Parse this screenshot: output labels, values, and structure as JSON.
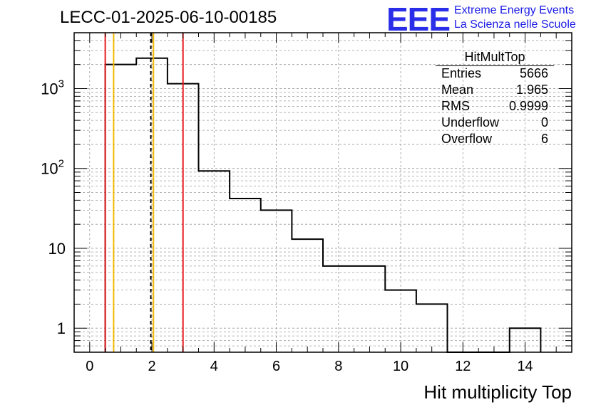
{
  "title": "LECC-01-2025-06-10-00185",
  "logo": {
    "mark": "EEE",
    "line1": "Extreme Energy Events",
    "line2": "La Scienza nelle Scuole",
    "color": "#1a1ae6"
  },
  "stats": {
    "name": "HitMultTop",
    "rows": [
      {
        "label": "Entries",
        "value": "5666"
      },
      {
        "label": "Mean",
        "value": "1.965"
      },
      {
        "label": "RMS",
        "value": "0.9999"
      },
      {
        "label": "Underflow",
        "value": "0"
      },
      {
        "label": "Overflow",
        "value": "6"
      }
    ]
  },
  "chart_data": {
    "type": "bar",
    "histogram": "step",
    "xlabel": "Hit multiplicity Top",
    "ylabel": "",
    "xlim": [
      -0.5,
      15.5
    ],
    "ylim": [
      0.5,
      5000
    ],
    "yscale": "log",
    "grid": true,
    "x_ticks": [
      0,
      2,
      4,
      6,
      8,
      10,
      12,
      14
    ],
    "x_tick_labels": [
      "0",
      "2",
      "4",
      "6",
      "8",
      "10",
      "12",
      "14"
    ],
    "y_ticks": [
      1,
      10,
      100,
      1000
    ],
    "y_tick_labels": [
      "1",
      "10",
      "10^2",
      "10^3"
    ],
    "bin_edges": [
      0.5,
      1.5,
      2.5,
      3.5,
      4.5,
      5.5,
      6.5,
      7.5,
      8.5,
      9.5,
      10.5,
      11.5,
      12.5,
      13.5,
      14.5
    ],
    "values": [
      2000,
      2400,
      1150,
      93,
      42,
      30,
      13,
      6,
      6,
      3,
      2,
      0,
      0,
      1
    ],
    "vertical_lines": [
      {
        "x": 0.5,
        "color": "#e8191c",
        "style": "solid"
      },
      {
        "x": 0.77,
        "color": "#f5b800",
        "style": "solid"
      },
      {
        "x": 1.965,
        "color": "#000000",
        "style": "dashed"
      },
      {
        "x": 2.05,
        "color": "#f5b800",
        "style": "solid"
      },
      {
        "x": 3.0,
        "color": "#e8191c",
        "style": "solid"
      }
    ],
    "line_color": "#000000",
    "stats_position": "top-right"
  }
}
